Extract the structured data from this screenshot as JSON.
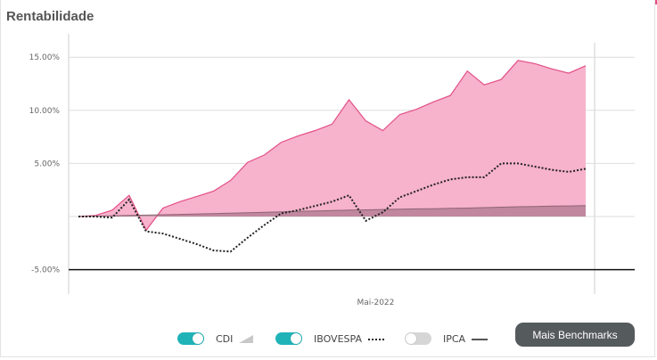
{
  "header": {
    "title": "Rentabilidade"
  },
  "colors": {
    "accent_bar": "#e4508a",
    "cdi": "#a9a9a9",
    "ibovespa": "#222222",
    "ipca": "#555555",
    "portfolio_fill": "#f7b2cc",
    "portfolio_line": "#e24f86",
    "toggle_on": "#1fb3b8",
    "toggle_off": "#d6d6d6"
  },
  "legend": {
    "items": [
      {
        "label": "CDI",
        "enabled": true,
        "icon": "area-triangle-icon"
      },
      {
        "label": "IBOVESPA",
        "enabled": true,
        "icon": "dotted-line-icon"
      },
      {
        "label": "IPCA",
        "enabled": false,
        "icon": "solid-line-icon"
      }
    ]
  },
  "benchmarks_button": {
    "label": "Mais Benchmarks"
  },
  "chart_data": {
    "type": "area",
    "title": "Rentabilidade",
    "xlabel": "",
    "ylabel": "",
    "ylim": [
      -7.3,
      17.2
    ],
    "yticks": [
      -5,
      0,
      5,
      10,
      15
    ],
    "ytick_labels": [
      "-5.00%",
      "",
      "5.00%",
      "10.00%",
      "15.00%"
    ],
    "x_tick_labels": [
      {
        "label": "Mai-2022",
        "index": 17
      }
    ],
    "grid": true,
    "legend_position": "bottom",
    "x": [
      0,
      1,
      2,
      3,
      4,
      5,
      6,
      7,
      8,
      9,
      10,
      11,
      12,
      13,
      14,
      15,
      16,
      17,
      18,
      19,
      20,
      21,
      22,
      23,
      24,
      25,
      26,
      27,
      28,
      29,
      30
    ],
    "series": [
      {
        "name": "",
        "style": "area",
        "values": [
          0.0,
          0.1,
          0.6,
          2.0,
          -1.3,
          0.8,
          1.4,
          1.9,
          2.4,
          3.4,
          5.1,
          5.8,
          7.0,
          7.6,
          8.1,
          8.7,
          11.0,
          9.0,
          8.1,
          9.6,
          10.1,
          10.8,
          11.4,
          13.7,
          12.4,
          12.9,
          14.7,
          14.4,
          13.9,
          13.5,
          14.2
        ]
      },
      {
        "name": "CDI",
        "style": "area",
        "values": [
          0.0,
          0.03,
          0.07,
          0.1,
          0.13,
          0.17,
          0.2,
          0.24,
          0.28,
          0.32,
          0.36,
          0.4,
          0.44,
          0.48,
          0.52,
          0.56,
          0.6,
          0.63,
          0.66,
          0.69,
          0.72,
          0.74,
          0.77,
          0.8,
          0.84,
          0.88,
          0.92,
          0.95,
          0.98,
          1.0,
          1.03
        ]
      },
      {
        "name": "IBOVESPA",
        "style": "dotted",
        "values": [
          0.0,
          0.0,
          -0.1,
          1.6,
          -1.4,
          -1.6,
          -2.1,
          -2.6,
          -3.2,
          -3.3,
          -2.0,
          -0.8,
          0.3,
          0.6,
          1.0,
          1.4,
          2.0,
          -0.4,
          0.4,
          1.8,
          2.4,
          3.0,
          3.5,
          3.7,
          3.7,
          5.0,
          5.0,
          4.7,
          4.4,
          4.2,
          4.5
        ]
      }
    ]
  }
}
